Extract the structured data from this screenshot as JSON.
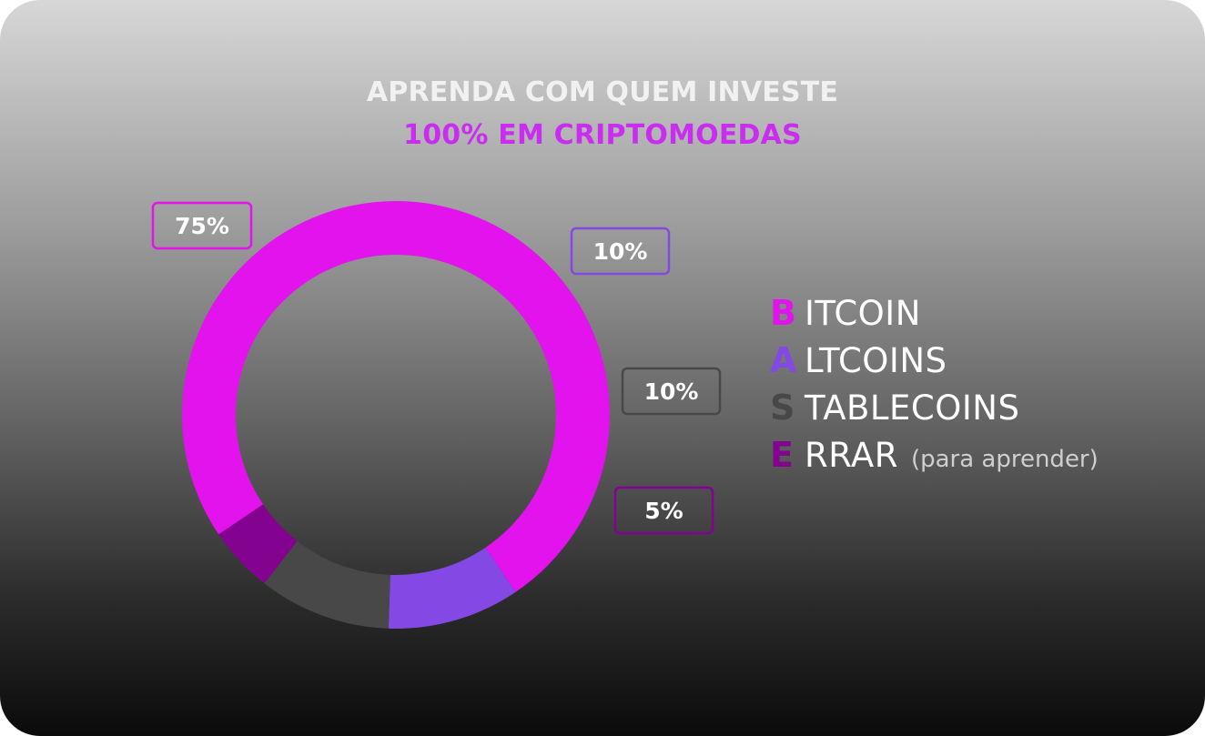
{
  "header": {
    "line1": "APRENDA COM QUEM INVESTE",
    "line2": "100% EM CRIPTOMOEDAS"
  },
  "chart_data": {
    "type": "pie",
    "donut": true,
    "categories": [
      "BITCOIN",
      "ALTCOINS",
      "STABLECOINS",
      "ERRAR"
    ],
    "values": [
      75,
      10,
      10,
      5
    ],
    "labels": [
      "75%",
      "10%",
      "10%",
      "5%"
    ],
    "colors": [
      "#e213ec",
      "#8448e4",
      "#484848",
      "#830390"
    ],
    "legend_placement": "right"
  },
  "legend": {
    "items": [
      {
        "letter": "B",
        "rest": "ITCOIN",
        "color": "#e213ec"
      },
      {
        "letter": "A",
        "rest": "LTCOINS",
        "color": "#8448e4"
      },
      {
        "letter": "S",
        "rest": "TABLECOINS",
        "color": "#484848"
      },
      {
        "letter": "E",
        "rest": "RRAR",
        "note": "(para aprender)",
        "color": "#830390"
      }
    ]
  }
}
